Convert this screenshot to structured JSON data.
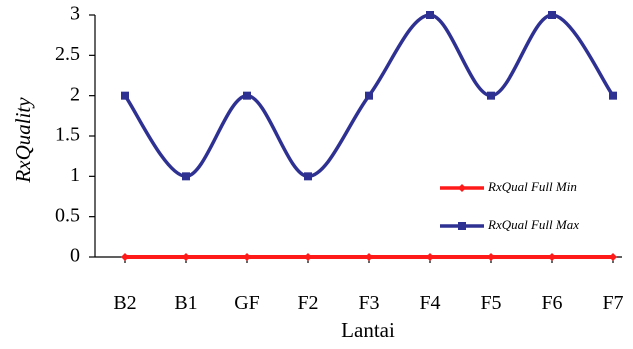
{
  "chart_data": {
    "type": "line",
    "categories": [
      "B2",
      "B1",
      "GF",
      "F2",
      "F3",
      "F4",
      "F5",
      "F6",
      "F7"
    ],
    "xlabel": "Lantai",
    "ylabel": "RxQuality",
    "ylim": [
      0,
      3
    ],
    "yticks": [
      "0",
      "0.5",
      "1",
      "1.5",
      "2",
      "2.5",
      "3"
    ],
    "grid": false,
    "smoothed": true,
    "legend_position": "right",
    "series": [
      {
        "name": "RxQual Full Min",
        "color": "#ff1a1a",
        "marker": "diamond",
        "values": [
          0,
          0,
          0,
          0,
          0,
          0,
          0,
          0,
          0
        ]
      },
      {
        "name": "RxQual Full Max",
        "color": "#2e3192",
        "marker": "square",
        "values": [
          2,
          1,
          2,
          1,
          2,
          3,
          2,
          3,
          2
        ]
      }
    ]
  }
}
